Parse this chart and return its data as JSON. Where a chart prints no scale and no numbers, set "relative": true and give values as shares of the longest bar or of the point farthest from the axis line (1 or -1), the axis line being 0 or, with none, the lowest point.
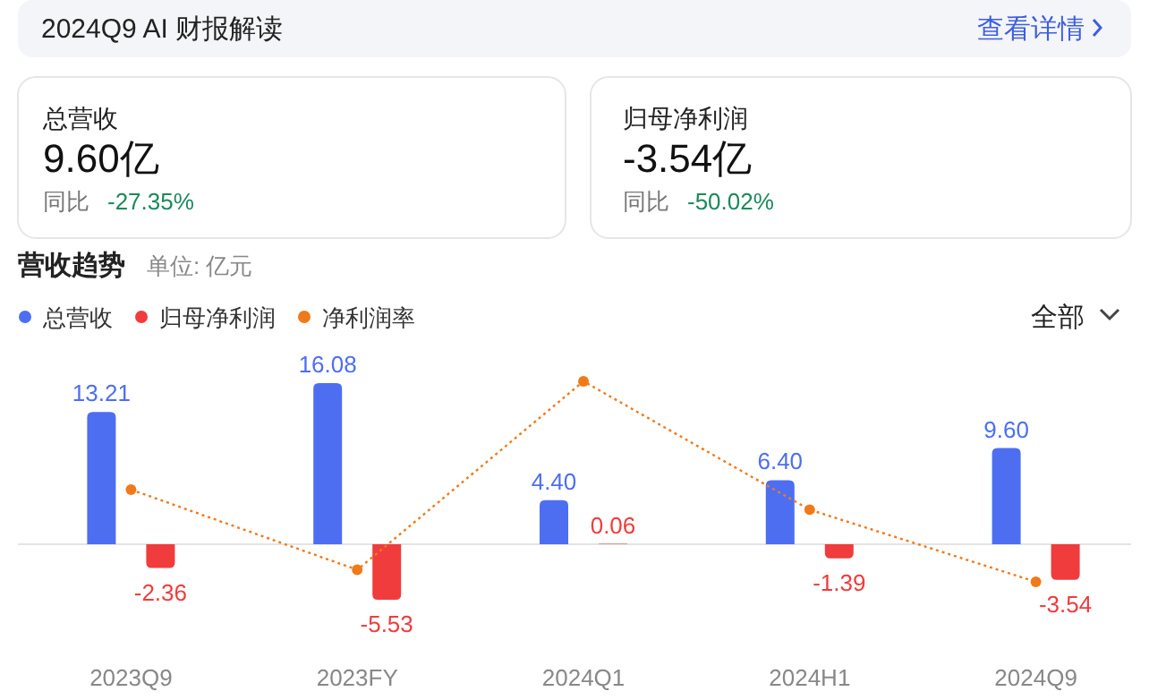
{
  "chart_data": [
    {
      "type": "bar",
      "title": "营收趋势",
      "subtitle": "单位: 亿元",
      "annotations": [
        "2024Q9 AI 财报解读",
        "查看详情",
        "总营收",
        "9.60亿",
        "同比",
        "-27.35%",
        "归母净利润",
        "-3.54亿",
        "同比",
        "-50.02%",
        "全部"
      ],
      "categories": [
        "2023Q9",
        "2023FY",
        "2024Q1",
        "2024H1",
        "2024Q9"
      ],
      "series": [
        {
          "name": "总营收",
          "color": "#4e6ef2",
          "values": [
            13.21,
            16.08,
            4.4,
            6.4,
            9.6
          ],
          "value_labels": [
            "13.21",
            "16.08",
            "4.40",
            "6.40",
            "9.60"
          ]
        },
        {
          "name": "归母净利润",
          "color": "#f03c3c",
          "values": [
            -2.36,
            -5.53,
            0.06,
            -1.39,
            -3.54
          ],
          "value_labels": [
            "-2.36",
            "-5.53",
            "0.06",
            "-1.39",
            "-3.54"
          ]
        }
      ],
      "tick_labels": "x",
      "legend": "top left"
    },
    {
      "type": "line",
      "relative": true,
      "categories": [
        null,
        null,
        null,
        null,
        null
      ],
      "series": [
        {
          "name": "净利润率",
          "color": "#f07a1a",
          "values": [
            0.46,
            0.06,
            1,
            0.36,
            0
          ]
        }
      ],
      "tick_labels": false,
      "legend": "top left",
      "marker": "circle",
      "line_style": "dotted"
    }
  ]
}
